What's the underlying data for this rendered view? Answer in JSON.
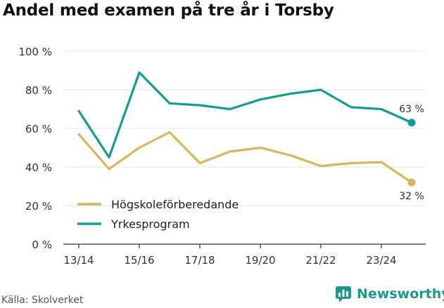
{
  "title": "Andel med examen på tre år i Torsby",
  "source": "Källa: Skolverket",
  "brand": "Newsworthy",
  "colors": {
    "Högskoleförberedande": "#dbb45b",
    "Yrkesprogram": "#149e91"
  },
  "chart_data": {
    "type": "line",
    "title": "Andel med examen på tre år i Torsby",
    "xlabel": "",
    "ylabel": "",
    "x": [
      "13/14",
      "14/15",
      "15/16",
      "16/17",
      "17/18",
      "18/19",
      "19/20",
      "20/21",
      "21/22",
      "22/23",
      "23/24",
      "24/25"
    ],
    "x_tick_labels": [
      "13/14",
      "15/16",
      "17/18",
      "19/20",
      "21/22",
      "23/24"
    ],
    "ylim": [
      0,
      100
    ],
    "y_ticks": [
      0,
      20,
      40,
      60,
      80,
      100
    ],
    "y_tick_labels": [
      "0 %",
      "20 %",
      "40 %",
      "60 %",
      "80 %",
      "100 %"
    ],
    "grid": true,
    "legend": "bottom-left",
    "series": [
      {
        "name": "Högskoleförberedande",
        "values": [
          57,
          39,
          50,
          58,
          42,
          48,
          50,
          46,
          40.5,
          42,
          42.5,
          32
        ],
        "end_label": "32 %"
      },
      {
        "name": "Yrkesprogram",
        "values": [
          69,
          45,
          89,
          73,
          72,
          70,
          75,
          78,
          80,
          71,
          70,
          63
        ],
        "end_label": "63 %"
      }
    ]
  }
}
